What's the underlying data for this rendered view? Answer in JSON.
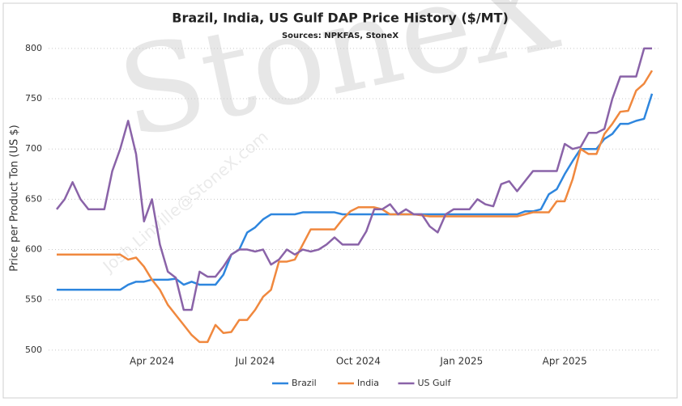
{
  "chart_data": {
    "type": "line",
    "title": "Brazil, India, US Gulf DAP Price History ($/MT)",
    "subtitle": "Sources: NPKFAS, StoneX",
    "ylabel": "Price per Product Ton (US $)",
    "watermark": "StoneX",
    "watermark_email": "Josh.Linville@StoneX.com",
    "categories": [
      null,
      null,
      null,
      null,
      null,
      null,
      null,
      null,
      null,
      null,
      null,
      null,
      "Apr 2024",
      null,
      null,
      null,
      null,
      null,
      null,
      null,
      null,
      null,
      null,
      null,
      null,
      "Jul 2024",
      null,
      null,
      null,
      null,
      null,
      null,
      null,
      null,
      null,
      null,
      null,
      null,
      "Oct 2024",
      null,
      null,
      null,
      null,
      null,
      null,
      null,
      null,
      null,
      null,
      null,
      null,
      "Jan 2025",
      null,
      null,
      null,
      null,
      null,
      null,
      null,
      null,
      null,
      null,
      null,
      null,
      "Apr 2025",
      null,
      null,
      null,
      null,
      null,
      null,
      null,
      null,
      null,
      null,
      null
    ],
    "series": [
      {
        "name": "Brazil",
        "color": "#2e86de",
        "values": [
          560,
          560,
          560,
          560,
          560,
          560,
          560,
          560,
          560,
          565,
          568,
          568,
          570,
          570,
          570,
          571,
          565,
          568,
          565,
          565,
          565,
          575,
          595,
          600,
          617,
          622,
          630,
          635,
          635,
          635,
          635,
          637,
          637,
          637,
          637,
          637,
          635,
          635,
          635,
          635,
          635,
          635,
          635,
          635,
          635,
          635,
          635,
          635,
          635,
          635,
          635,
          635,
          635,
          635,
          635,
          635,
          635,
          635,
          635,
          638,
          638,
          640,
          655,
          660,
          675,
          688,
          700,
          700,
          700,
          710,
          715,
          725,
          725,
          728,
          730,
          755
        ]
      },
      {
        "name": "India",
        "color": "#f0883e",
        "values": [
          595,
          595,
          595,
          595,
          595,
          595,
          595,
          595,
          595,
          590,
          592,
          583,
          570,
          560,
          545,
          535,
          525,
          515,
          508,
          508,
          525,
          517,
          518,
          530,
          530,
          540,
          553,
          560,
          588,
          588,
          590,
          605,
          620,
          620,
          620,
          620,
          630,
          638,
          642,
          642,
          642,
          640,
          635,
          635,
          635,
          635,
          634,
          633,
          633,
          633,
          633,
          633,
          633,
          633,
          633,
          633,
          633,
          633,
          633,
          635,
          637,
          637,
          637,
          648,
          648,
          670,
          700,
          695,
          695,
          715,
          725,
          737,
          738,
          758,
          765,
          778
        ]
      },
      {
        "name": "US Gulf",
        "color": "#8a63a8",
        "values": [
          640,
          650,
          667,
          650,
          640,
          640,
          640,
          678,
          700,
          728,
          695,
          628,
          650,
          605,
          578,
          572,
          540,
          540,
          578,
          573,
          573,
          583,
          595,
          600,
          600,
          598,
          600,
          585,
          590,
          600,
          595,
          600,
          598,
          600,
          605,
          612,
          605,
          605,
          605,
          618,
          640,
          640,
          645,
          635,
          640,
          635,
          635,
          623,
          617,
          635,
          640,
          640,
          640,
          650,
          645,
          643,
          665,
          668,
          658,
          668,
          678,
          678,
          678,
          678,
          705,
          700,
          702,
          716,
          716,
          720,
          750,
          772,
          772,
          772,
          800,
          800
        ]
      }
    ],
    "ylim": [
      483,
      820
    ],
    "yticks": [
      500,
      550,
      600,
      650,
      700,
      750,
      800
    ],
    "grid": true,
    "legend": "bottom"
  }
}
